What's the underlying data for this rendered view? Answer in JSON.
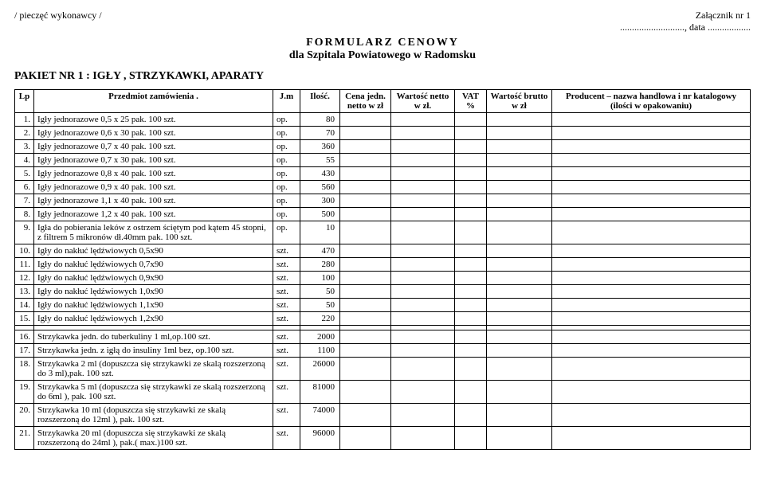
{
  "header": {
    "stamp": "/ pieczęć wykonawcy /",
    "zalacznik": "Załącznik nr 1",
    "date_line": "..........................., data ..................",
    "title1": "FORMULARZ   CENOWY",
    "title2": "dla Szpitala Powiatowego w Radomsku",
    "pakiet": "PAKIET  NR 1 : IGŁY , STRZYKAWKI, APARATY"
  },
  "columns": {
    "lp": "Lp",
    "desc": "Przedmiot zamówienia .",
    "jm": "J.m",
    "ilosc": "Ilość.",
    "cena": "Cena jedn. netto  w zł",
    "wnetto": "Wartość netto w  zł.",
    "vat": "VAT %",
    "wbrutto": "Wartość brutto w zł",
    "prod": "Producent – nazwa handlowa i nr katalogowy (ilości w opakowaniu)"
  },
  "rows": [
    {
      "lp": "1.",
      "desc": "Igły jednorazowe   0,5 x 25     pak. 100 szt.",
      "jm": "op.",
      "ilosc": "80"
    },
    {
      "lp": "2.",
      "desc": "Igły jednorazowe   0,6 x 30     pak. 100 szt.",
      "jm": "op.",
      "ilosc": "70"
    },
    {
      "lp": "3.",
      "desc": "Igły jednorazowe   0,7 x 40     pak. 100 szt.",
      "jm": "op.",
      "ilosc": "360"
    },
    {
      "lp": "4.",
      "desc": "Igły jednorazowe   0,7 x 30     pak. 100 szt.",
      "jm": "op.",
      "ilosc": "55"
    },
    {
      "lp": "5.",
      "desc": "Igły jednorazowe   0,8 x 40     pak. 100 szt.",
      "jm": "op.",
      "ilosc": "430"
    },
    {
      "lp": "6.",
      "desc": "Igły jednorazowe   0,9 x 40     pak. 100 szt.",
      "jm": "op.",
      "ilosc": "560"
    },
    {
      "lp": "7.",
      "desc": "Igły jednorazowe   1,1 x 40     pak. 100 szt.",
      "jm": "op.",
      "ilosc": "300"
    },
    {
      "lp": "8.",
      "desc": "Igły jednorazowe    1,2 x 40    pak. 100 szt.",
      "jm": "op.",
      "ilosc": "500"
    },
    {
      "lp": "9.",
      "desc": "Igła do pobierania leków z ostrzem ściętym pod kątem 45 stopni, z filtrem 5 mikronów dł.40mm     pak. 100 szt.",
      "jm": "op.",
      "ilosc": "10"
    },
    {
      "lp": "10.",
      "desc": "Igły do nakłuć lędźwiowych   0,5x90",
      "jm": "szt.",
      "ilosc": "470"
    },
    {
      "lp": "11.",
      "desc": "Igły do nakłuć lędźwiowych   0,7x90",
      "jm": "szt.",
      "ilosc": "280"
    },
    {
      "lp": "12.",
      "desc": "Igły do nakłuć lędźwiowych   0,9x90",
      "jm": "szt.",
      "ilosc": "100"
    },
    {
      "lp": "13.",
      "desc": "Igły do nakłuć lędźwiowych   1,0x90",
      "jm": "szt.",
      "ilosc": "50"
    },
    {
      "lp": "14.",
      "desc": "Igły do nakłuć lędźwiowych   1,1x90",
      "jm": "szt.",
      "ilosc": "50"
    },
    {
      "lp": "15.",
      "desc": "Igły do nakłuć lędźwiowych   1,2x90",
      "jm": "szt.",
      "ilosc": "220"
    },
    {
      "separator": true
    },
    {
      "lp": "16.",
      "desc": "Strzykawka jedn. do tuberkuliny 1 ml,op.100 szt.",
      "jm": "szt.",
      "ilosc": "2000"
    },
    {
      "lp": "17.",
      "desc": "Strzykawka jedn. z igłą do insuliny 1ml bez, op.100 szt.",
      "jm": "szt.",
      "ilosc": "1100"
    },
    {
      "lp": "18.",
      "desc": "Strzykawka 2 ml  (dopuszcza się  strzykawki ze skalą rozszerzoną do 3 ml),pak. 100 szt.",
      "jm": "szt.",
      "ilosc": "26000"
    },
    {
      "lp": "19.",
      "desc": "Strzykawka 5 ml     (dopuszcza się strzykawki ze skalą rozszerzoną do 6ml ), pak. 100 szt.",
      "jm": "szt.",
      "ilosc": "81000"
    },
    {
      "lp": "20.",
      "desc": "Strzykawka 10 ml       (dopuszcza się strzykawki ze skalą rozszerzoną do 12ml ),  pak. 100 szt.",
      "jm": "szt.",
      "ilosc": "74000"
    },
    {
      "lp": "21.",
      "desc": "Strzykawka 20 ml (dopuszcza się strzykawki ze skalą rozszerzoną do 24ml ), pak.( max.)100 szt.",
      "jm": "szt.",
      "ilosc": "96000"
    }
  ]
}
